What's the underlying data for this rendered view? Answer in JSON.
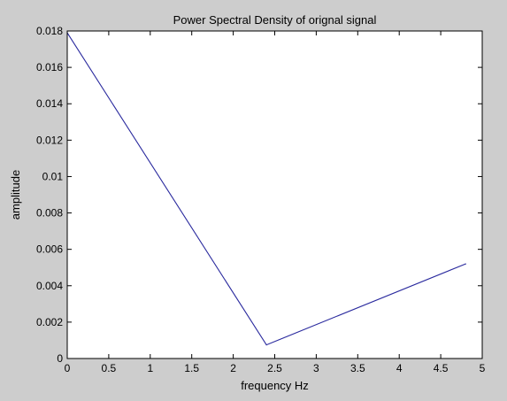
{
  "chart_data": {
    "type": "line",
    "title": "Power Spectral Density of orignal signal",
    "xlabel": "frequency Hz",
    "ylabel": "amplitude",
    "xlim": [
      0,
      5
    ],
    "ylim": [
      0,
      0.018
    ],
    "xticks": [
      0,
      0.5,
      1,
      1.5,
      2,
      2.5,
      3,
      3.5,
      4,
      4.5,
      5
    ],
    "xtick_labels": [
      "0",
      "0.5",
      "1",
      "1.5",
      "2",
      "2.5",
      "3",
      "3.5",
      "4",
      "4.5",
      "5"
    ],
    "yticks": [
      0,
      0.002,
      0.004,
      0.006,
      0.008,
      0.01,
      0.012,
      0.014,
      0.016,
      0.018
    ],
    "ytick_labels": [
      "0",
      "0.002",
      "0.004",
      "0.006",
      "0.008",
      "0.01",
      "0.012",
      "0.014",
      "0.016",
      "0.018"
    ],
    "grid": false,
    "series": [
      {
        "color": "#2a2a9e",
        "x": [
          0,
          2.4,
          4.8
        ],
        "y": [
          0.0179,
          0.00075,
          0.0052
        ]
      }
    ]
  }
}
